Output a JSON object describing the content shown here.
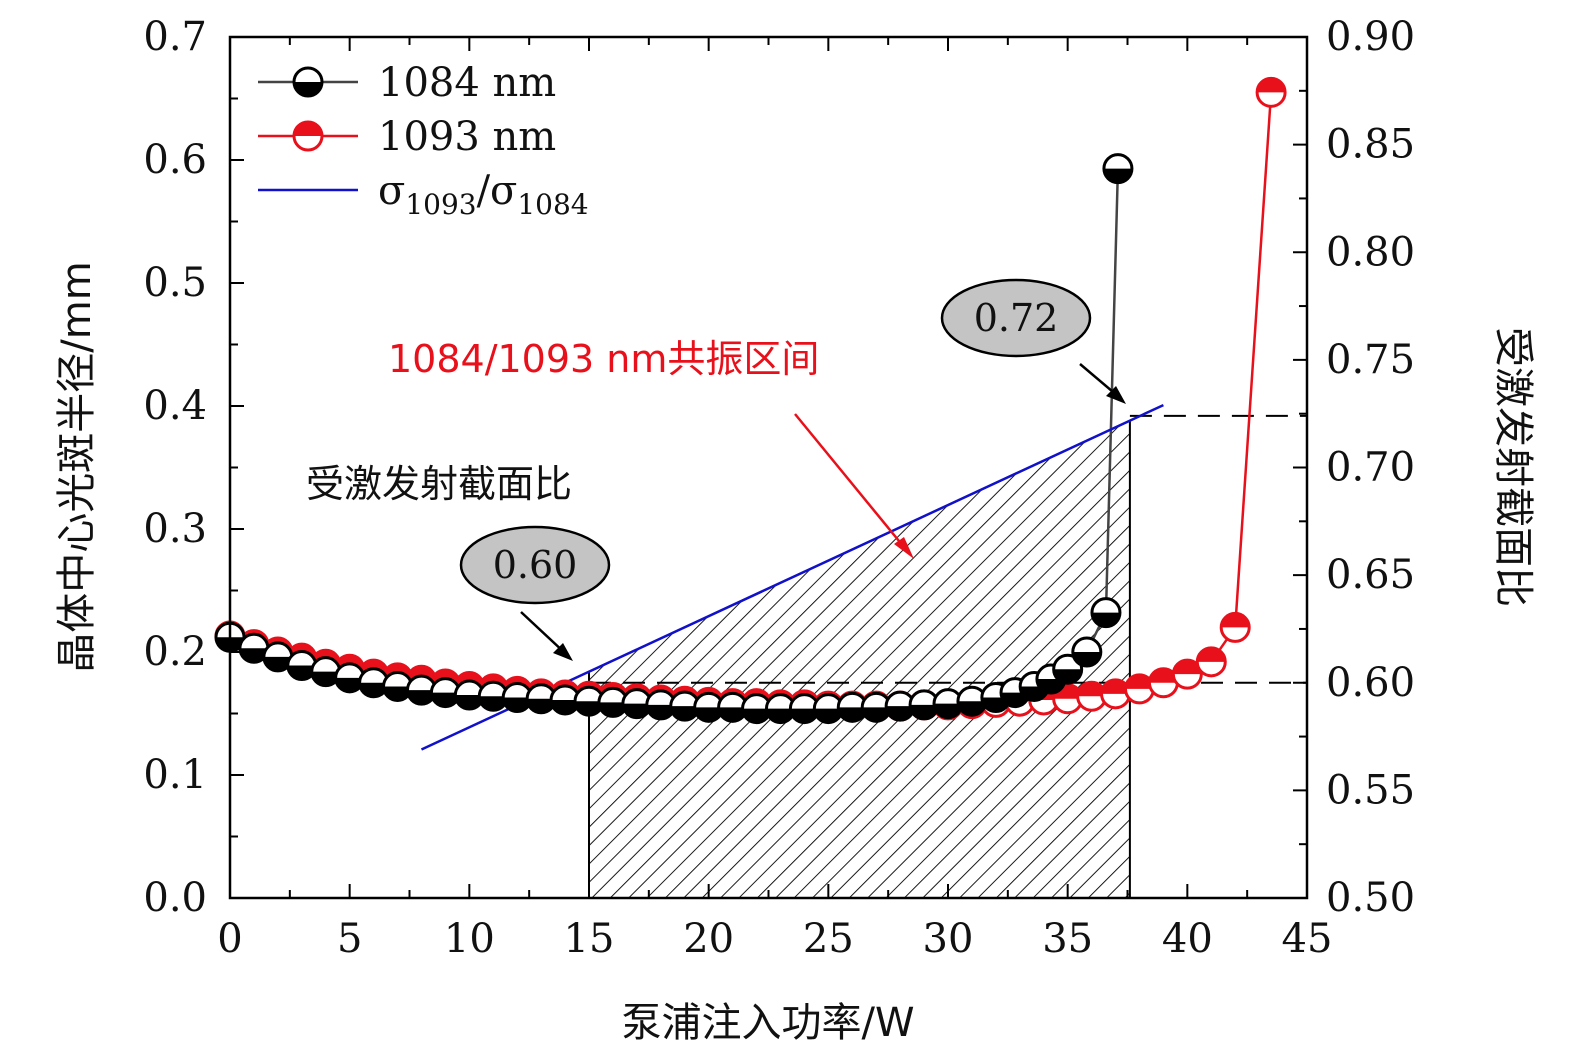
{
  "chart_data": {
    "type": "line",
    "xlabel": "泵浦注入功率/W",
    "ylabel": "晶体中心光斑半径/mm",
    "y2label": "受激发射截面比",
    "xlim": [
      0,
      45
    ],
    "ylim": [
      0,
      0.7
    ],
    "y2lim": [
      0.5,
      0.9
    ],
    "xticks": [
      "0",
      "5",
      "10",
      "15",
      "20",
      "25",
      "30",
      "35",
      "40",
      "45"
    ],
    "yticks": [
      "0.0",
      "0.1",
      "0.2",
      "0.3",
      "0.4",
      "0.5",
      "0.6",
      "0.7"
    ],
    "y2ticks": [
      "0.50",
      "0.55",
      "0.60",
      "0.65",
      "0.70",
      "0.75",
      "0.80",
      "0.85",
      "0.90"
    ],
    "legend": {
      "position": "top-left",
      "entries": [
        "1084 nm",
        "1093 nm",
        "σ1093/σ1084"
      ]
    },
    "series": [
      {
        "name": "1084 nm",
        "color": "#000000",
        "axis": "left",
        "x": [
          0,
          1,
          2,
          3,
          4,
          5,
          6,
          7,
          8,
          9,
          10,
          11,
          12,
          13,
          14,
          15,
          16,
          17,
          18,
          19,
          20,
          21,
          22,
          23,
          24,
          25,
          26,
          27,
          28,
          29,
          30,
          31,
          32,
          32.8,
          33.6,
          34.3,
          35,
          35.8,
          36.6,
          37.1
        ],
        "y": [
          0.212,
          0.203,
          0.196,
          0.189,
          0.184,
          0.179,
          0.175,
          0.172,
          0.169,
          0.167,
          0.165,
          0.164,
          0.163,
          0.162,
          0.161,
          0.16,
          0.159,
          0.158,
          0.157,
          0.156,
          0.155,
          0.155,
          0.154,
          0.154,
          0.154,
          0.154,
          0.155,
          0.155,
          0.156,
          0.157,
          0.158,
          0.16,
          0.163,
          0.167,
          0.172,
          0.178,
          0.186,
          0.2,
          0.232,
          0.593
        ]
      },
      {
        "name": "1093 nm",
        "color": "#e8101a",
        "axis": "left",
        "x": [
          0,
          1,
          2,
          3,
          4,
          5,
          6,
          7,
          8,
          9,
          10,
          11,
          12,
          13,
          14,
          15,
          16,
          17,
          18,
          19,
          20,
          21,
          22,
          23,
          24,
          25,
          26,
          27,
          28,
          29,
          30,
          31,
          32,
          33,
          34,
          35,
          36,
          37,
          38,
          39,
          40,
          41,
          42,
          43.5
        ],
        "y": [
          0.213,
          0.206,
          0.2,
          0.195,
          0.19,
          0.186,
          0.182,
          0.179,
          0.177,
          0.174,
          0.172,
          0.17,
          0.168,
          0.166,
          0.165,
          0.164,
          0.163,
          0.162,
          0.161,
          0.16,
          0.159,
          0.158,
          0.158,
          0.157,
          0.157,
          0.156,
          0.156,
          0.156,
          0.156,
          0.157,
          0.157,
          0.158,
          0.159,
          0.16,
          0.161,
          0.162,
          0.164,
          0.166,
          0.17,
          0.175,
          0.182,
          0.192,
          0.22,
          0.655
        ]
      },
      {
        "name": "σ1093/σ1084",
        "color": "#1111cc",
        "axis": "right",
        "x": [
          8,
          39
        ],
        "y": [
          0.569,
          0.729
        ]
      }
    ],
    "shaded_region": {
      "x": [
        15,
        37.6
      ],
      "label": "1084/1093 nm共振区间"
    },
    "reference_lines": {
      "y2": [
        0.6,
        0.724
      ]
    },
    "annotations": {
      "region_label": "1084/1093 nm共振区间",
      "ratio_label": "受激发射截面比",
      "bubble_low": "0.60",
      "bubble_high": "0.72"
    }
  }
}
